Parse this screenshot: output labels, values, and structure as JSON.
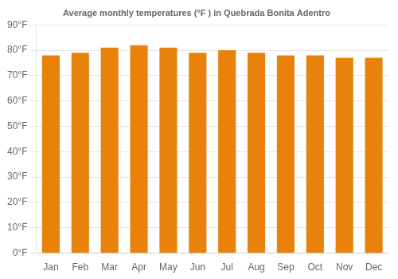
{
  "chart_data": {
    "type": "bar",
    "title": "Average monthly temperatures (°F ) in Quebrada Bonita Adentro",
    "categories": [
      "Jan",
      "Feb",
      "Mar",
      "Apr",
      "May",
      "Jun",
      "Jul",
      "Aug",
      "Sep",
      "Oct",
      "Nov",
      "Dec"
    ],
    "values": [
      78,
      79,
      81,
      82,
      81,
      79,
      80,
      79,
      78,
      78,
      77,
      77
    ],
    "color": "#E8820A",
    "ylim": [
      0,
      90
    ],
    "yticks": [
      {
        "value": 0,
        "label": "0°F"
      },
      {
        "value": 10,
        "label": "10°F"
      },
      {
        "value": 20,
        "label": "20°F"
      },
      {
        "value": 30,
        "label": "30°F"
      },
      {
        "value": 40,
        "label": "40°F"
      },
      {
        "value": 50,
        "label": "50°F"
      },
      {
        "value": 60,
        "label": "60°F"
      },
      {
        "value": 70,
        "label": "70°F"
      },
      {
        "value": 80,
        "label": "80°F"
      },
      {
        "value": 90,
        "label": "90°F"
      }
    ],
    "grid": true
  }
}
